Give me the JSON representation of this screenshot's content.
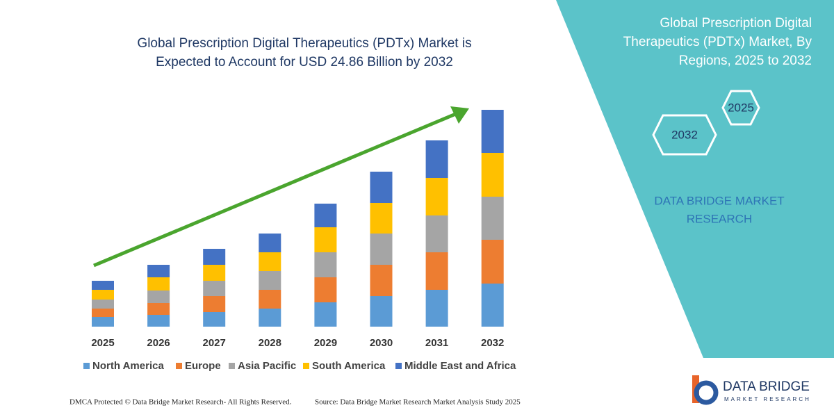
{
  "chart_data": {
    "type": "stacked_bar",
    "title": [
      "Global Prescription Digital Therapeutics (PDTx) Market is",
      "Expected to Account for USD 24.86 Billion by 2032"
    ],
    "categories": [
      "2025",
      "2026",
      "2027",
      "2028",
      "2029",
      "2030",
      "2031",
      "2032"
    ],
    "series": [
      {
        "name": "North America",
        "color": "#5b9bd5",
        "values": [
          14,
          17,
          21,
          26,
          35,
          44,
          53,
          62
        ]
      },
      {
        "name": "Europe",
        "color": "#ed7d31",
        "values": [
          12,
          17,
          23,
          27,
          36,
          45,
          54,
          63
        ]
      },
      {
        "name": "Asia Pacific",
        "color": "#a5a5a5",
        "values": [
          13,
          18,
          22,
          27,
          36,
          45,
          53,
          62
        ]
      },
      {
        "name": "South America",
        "color": "#ffc000",
        "values": [
          14,
          19,
          23,
          27,
          36,
          44,
          54,
          63
        ]
      },
      {
        "name": "Middle East and Africa",
        "color": "#4472c4",
        "values": [
          13,
          18,
          23,
          27,
          34,
          45,
          54,
          62
        ]
      }
    ],
    "ylim": [
      0,
      320
    ],
    "legend": "bottom"
  },
  "panel": {
    "title": [
      "Global Prescription Digital",
      "Therapeutics (PDTx) Market, By",
      "Regions, 2025 to 2032"
    ],
    "hex_start": "2025",
    "hex_end": "2032",
    "brand": [
      "DATA BRIDGE MARKET",
      "RESEARCH"
    ]
  },
  "logo": {
    "name": "DATA BRIDGE",
    "tagline": "MARKET RESEARCH"
  },
  "footer": {
    "left": "DMCA Protected © Data Bridge Market Research-  All Rights Reserved.",
    "right": "Source: Data Bridge Market Research  Market Analysis Study 2025"
  }
}
